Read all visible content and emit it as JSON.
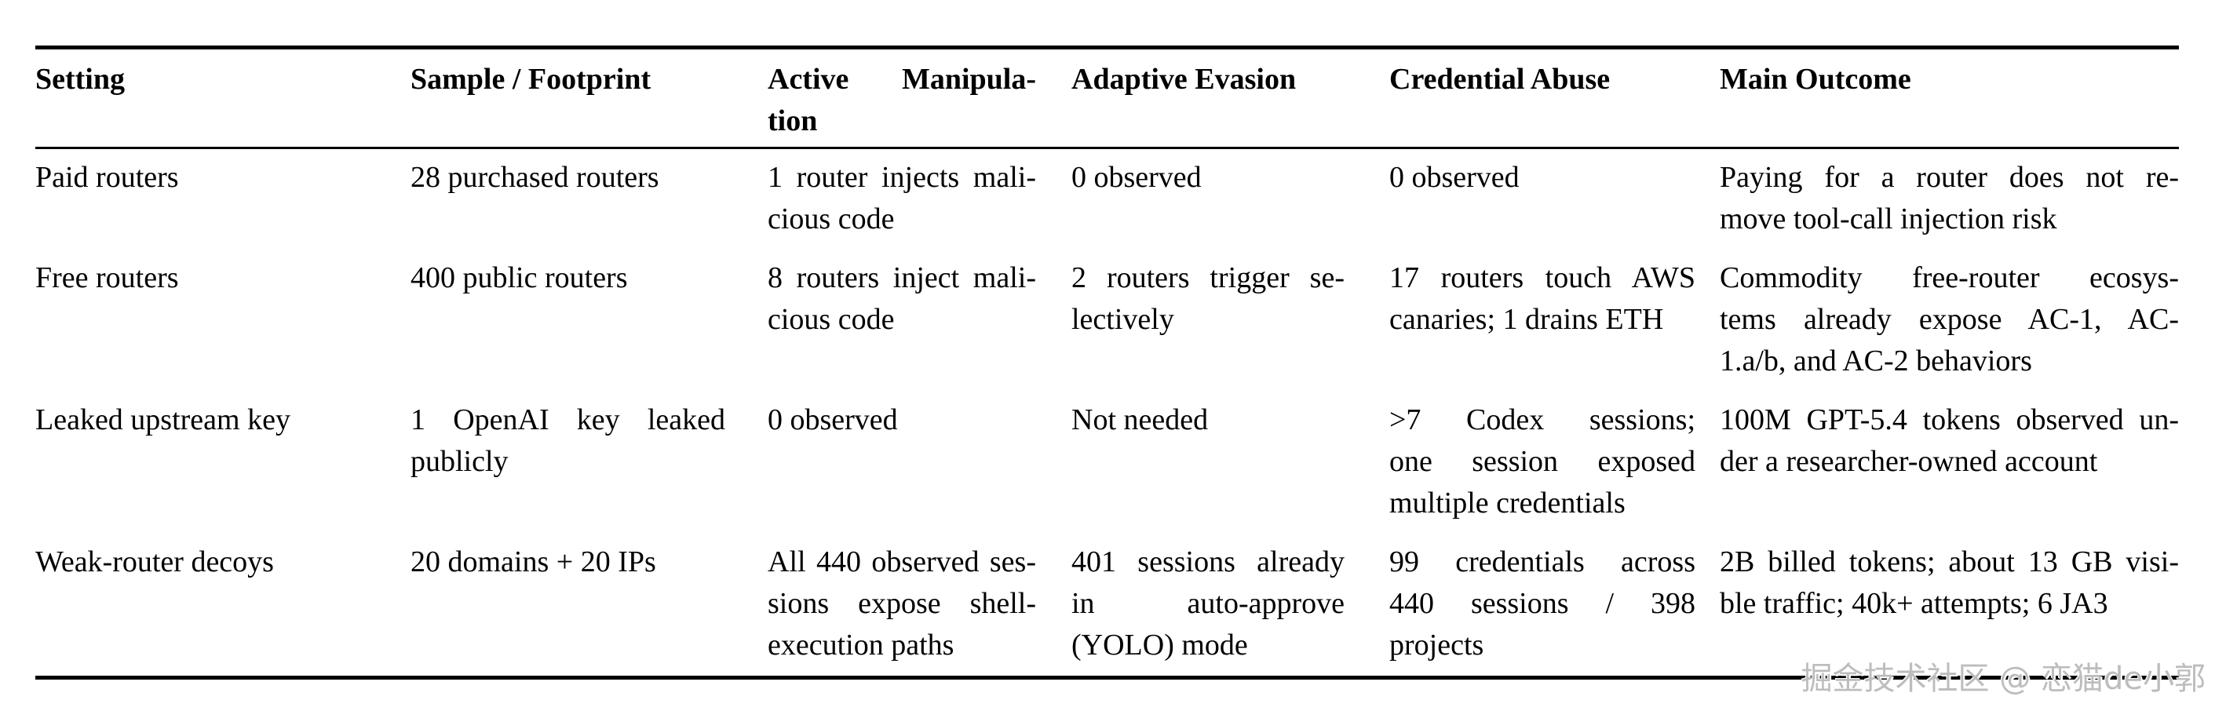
{
  "table": {
    "headers": [
      "Setting",
      "Sample / Footprint",
      "Active Manipula-\ntion",
      "Adaptive Evasion",
      "Credential Abuse",
      "Main Outcome"
    ],
    "rows": [
      {
        "cells": [
          "Paid routers",
          "28 purchased routers",
          "1 router injects mali-\ncious code",
          "0 observed",
          "0 observed",
          "Paying for a router does not re-\nmove tool-call injection risk"
        ]
      },
      {
        "cells": [
          "Free routers",
          "400 public routers",
          "8 routers inject mali-\ncious code",
          "2 routers trigger se-\nlectively",
          "17 routers touch AWS\ncanaries; 1 drains ETH",
          "Commodity free-router ecosys-\ntems already expose AC-1, AC-\n1.a/b, and AC-2 behaviors"
        ]
      },
      {
        "cells": [
          "Leaked upstream key",
          "1 OpenAI key leaked\npublicly",
          "0 observed",
          "Not needed",
          ">7 Codex sessions;\none session exposed\nmultiple credentials",
          "100M GPT-5.4 tokens observed un-\nder a researcher-owned account"
        ]
      },
      {
        "cells": [
          "Weak-router decoys",
          "20 domains + 20 IPs",
          "All 440 observed ses-\nsions expose shell-\nexecution paths",
          "401 sessions already\nin auto-approve\n(YOLO) mode",
          "99 credentials across\n440 sessions / 398\nprojects",
          "2B billed tokens; about 13 GB visi-\nble traffic; 40k+ attempts; 6 JA3"
        ]
      }
    ]
  },
  "watermark": "掘金技术社区 @ 恋猫de小郭"
}
